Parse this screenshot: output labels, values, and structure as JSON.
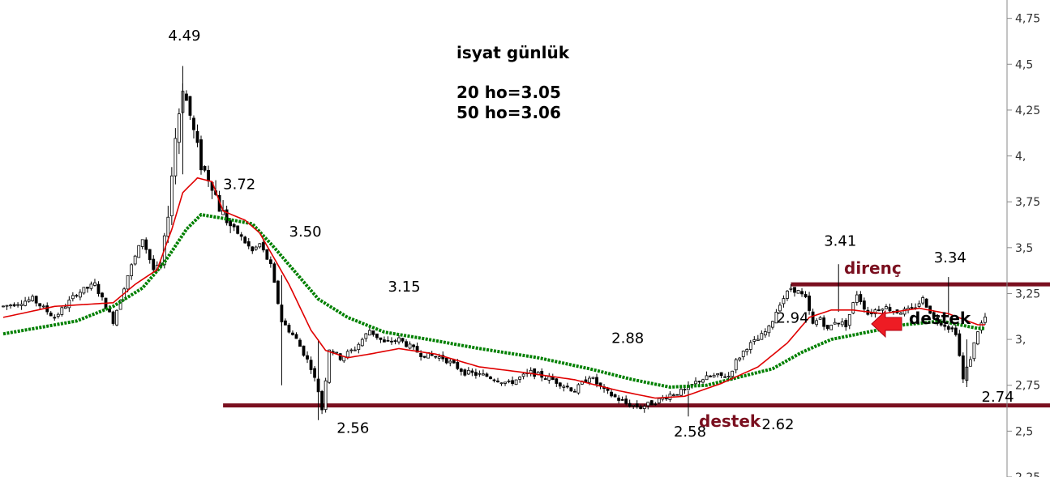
{
  "chart_data": {
    "type": "candlestick",
    "title": "isyat günlük",
    "subtitle_lines": [
      "20 ho=3.05",
      "50 ho=3.06"
    ],
    "y_axis": {
      "position": "right",
      "min": 2.25,
      "max": 4.85,
      "ticks": [
        "4,75",
        "4,5",
        "4,25",
        "4,",
        "3,75",
        "3,5",
        "3,25",
        "3,",
        "2,75",
        "2,5",
        "2,25"
      ],
      "tick_values": [
        4.75,
        4.5,
        4.25,
        4.0,
        3.75,
        3.5,
        3.25,
        3.0,
        2.75,
        2.5,
        2.25
      ]
    },
    "x_count": 140,
    "price_anchors": [
      [
        0,
        3.18
      ],
      [
        8,
        3.22
      ],
      [
        14,
        3.12
      ],
      [
        20,
        3.25
      ],
      [
        25,
        3.3
      ],
      [
        30,
        3.1
      ],
      [
        34,
        3.35
      ],
      [
        38,
        3.55
      ],
      [
        41,
        3.38
      ],
      [
        43,
        3.4
      ],
      [
        45,
        3.7
      ],
      [
        47,
        4.1
      ],
      [
        49,
        4.38
      ],
      [
        51,
        4.22
      ],
      [
        54,
        3.95
      ],
      [
        57,
        3.85
      ],
      [
        59,
        3.72
      ],
      [
        62,
        3.62
      ],
      [
        64,
        3.58
      ],
      [
        68,
        3.48
      ],
      [
        70,
        3.52
      ],
      [
        73,
        3.4
      ],
      [
        76,
        3.1
      ],
      [
        80,
        3.0
      ],
      [
        84,
        2.85
      ],
      [
        86,
        2.72
      ],
      [
        87,
        2.62
      ],
      [
        89,
        2.95
      ],
      [
        92,
        2.9
      ],
      [
        96,
        2.95
      ],
      [
        100,
        3.05
      ],
      [
        104,
        2.98
      ],
      [
        108,
        3.0
      ],
      [
        114,
        2.92
      ],
      [
        120,
        2.9
      ],
      [
        126,
        2.82
      ],
      [
        132,
        2.8
      ],
      [
        138,
        2.76
      ],
      [
        144,
        2.82
      ],
      [
        150,
        2.78
      ],
      [
        156,
        2.72
      ],
      [
        160,
        2.8
      ],
      [
        164,
        2.72
      ],
      [
        170,
        2.65
      ],
      [
        174,
        2.63
      ],
      [
        178,
        2.66
      ],
      [
        182,
        2.7
      ],
      [
        186,
        2.72
      ],
      [
        190,
        2.78
      ],
      [
        194,
        2.8
      ],
      [
        198,
        2.8
      ],
      [
        200,
        2.88
      ],
      [
        203,
        2.96
      ],
      [
        206,
        3.0
      ],
      [
        209,
        3.06
      ],
      [
        212,
        3.2
      ],
      [
        215,
        3.28
      ],
      [
        217,
        3.26
      ],
      [
        219,
        3.22
      ],
      [
        221,
        3.08
      ],
      [
        223,
        3.12
      ],
      [
        225,
        3.05
      ],
      [
        227,
        3.1
      ],
      [
        230,
        3.08
      ],
      [
        233,
        3.25
      ],
      [
        236,
        3.14
      ],
      [
        240,
        3.18
      ],
      [
        244,
        3.15
      ],
      [
        248,
        3.16
      ],
      [
        251,
        3.22
      ],
      [
        254,
        3.12
      ],
      [
        257,
        3.08
      ],
      [
        260,
        3.04
      ],
      [
        262,
        2.78
      ],
      [
        264,
        2.9
      ],
      [
        266,
        3.05
      ],
      [
        268,
        3.12
      ]
    ],
    "series": [
      {
        "name": "20 ho",
        "color": "#e00000",
        "style": "line"
      },
      {
        "name": "50 ho",
        "color": "#008000",
        "style": "dotted-thick"
      }
    ],
    "ma20_anchors": [
      [
        0,
        3.12
      ],
      [
        14,
        3.18
      ],
      [
        30,
        3.2
      ],
      [
        36,
        3.3
      ],
      [
        42,
        3.38
      ],
      [
        46,
        3.6
      ],
      [
        49,
        3.8
      ],
      [
        53,
        3.88
      ],
      [
        57,
        3.86
      ],
      [
        60,
        3.7
      ],
      [
        66,
        3.65
      ],
      [
        70,
        3.58
      ],
      [
        74,
        3.44
      ],
      [
        78,
        3.3
      ],
      [
        84,
        3.05
      ],
      [
        88,
        2.94
      ],
      [
        94,
        2.9
      ],
      [
        100,
        2.92
      ],
      [
        108,
        2.95
      ],
      [
        118,
        2.92
      ],
      [
        130,
        2.85
      ],
      [
        142,
        2.82
      ],
      [
        156,
        2.78
      ],
      [
        168,
        2.72
      ],
      [
        178,
        2.68
      ],
      [
        186,
        2.69
      ],
      [
        196,
        2.76
      ],
      [
        206,
        2.85
      ],
      [
        214,
        2.98
      ],
      [
        220,
        3.12
      ],
      [
        226,
        3.16
      ],
      [
        232,
        3.16
      ],
      [
        240,
        3.14
      ],
      [
        250,
        3.17
      ],
      [
        258,
        3.14
      ],
      [
        266,
        3.08
      ]
    ],
    "ma50_anchors": [
      [
        0,
        3.03
      ],
      [
        20,
        3.1
      ],
      [
        30,
        3.18
      ],
      [
        38,
        3.28
      ],
      [
        44,
        3.42
      ],
      [
        50,
        3.6
      ],
      [
        54,
        3.68
      ],
      [
        60,
        3.66
      ],
      [
        68,
        3.63
      ],
      [
        74,
        3.5
      ],
      [
        80,
        3.36
      ],
      [
        86,
        3.22
      ],
      [
        94,
        3.12
      ],
      [
        104,
        3.04
      ],
      [
        116,
        3.0
      ],
      [
        130,
        2.95
      ],
      [
        146,
        2.9
      ],
      [
        160,
        2.84
      ],
      [
        172,
        2.78
      ],
      [
        182,
        2.74
      ],
      [
        192,
        2.75
      ],
      [
        202,
        2.8
      ],
      [
        210,
        2.84
      ],
      [
        218,
        2.93
      ],
      [
        226,
        3.0
      ],
      [
        236,
        3.04
      ],
      [
        246,
        3.08
      ],
      [
        256,
        3.1
      ],
      [
        266,
        3.06
      ]
    ],
    "annotations": [
      {
        "text": "4.49",
        "x": 49,
        "y": 4.63
      },
      {
        "text": "3.72",
        "x": 64,
        "y": 3.82
      },
      {
        "text": "3.50",
        "x": 82,
        "y": 3.56
      },
      {
        "text": "3.15",
        "x": 109,
        "y": 3.26
      },
      {
        "text": "2.56",
        "x": 95,
        "y": 2.49
      },
      {
        "text": "2.88",
        "x": 170,
        "y": 2.98
      },
      {
        "text": "2.58",
        "x": 187,
        "y": 2.47
      },
      {
        "text": "2.62",
        "x": 211,
        "y": 2.51
      },
      {
        "text": "2.94",
        "x": 215,
        "y": 3.09
      },
      {
        "text": "3.41",
        "x": 228,
        "y": 3.51
      },
      {
        "text": "3.34",
        "x": 258,
        "y": 3.42
      },
      {
        "text": "2.74",
        "x": 271,
        "y": 2.66
      }
    ],
    "levels": [
      {
        "label": "direnç",
        "value": 3.3,
        "x_from": 215,
        "x_to": 330,
        "color": "#7a0f1f"
      },
      {
        "label": "destek",
        "value": 2.64,
        "x_from": 60,
        "x_to": 330,
        "color": "#7a0f1f"
      }
    ],
    "marker": {
      "label": "destek",
      "color": "#ee1c24"
    }
  }
}
